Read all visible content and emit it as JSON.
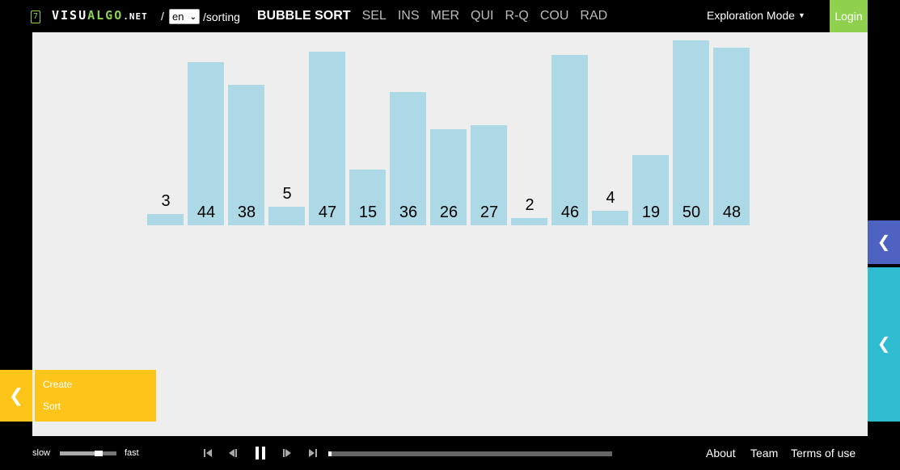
{
  "header": {
    "logo_badge": "7",
    "logo_part1": "VISU",
    "logo_part2": "ALGO",
    "logo_part3": ".NET",
    "slash": "/",
    "language": "en",
    "path": "/sorting",
    "algorithms": [
      {
        "label": "BUBBLE SORT",
        "active": true
      },
      {
        "label": "SEL",
        "active": false
      },
      {
        "label": "INS",
        "active": false
      },
      {
        "label": "MER",
        "active": false
      },
      {
        "label": "QUI",
        "active": false
      },
      {
        "label": "R-Q",
        "active": false
      },
      {
        "label": "COU",
        "active": false
      },
      {
        "label": "RAD",
        "active": false
      }
    ],
    "mode": "Exploration Mode",
    "login": "Login"
  },
  "array": {
    "values": [
      3,
      44,
      38,
      5,
      47,
      15,
      36,
      26,
      27,
      2,
      46,
      4,
      19,
      50,
      48
    ],
    "labels": [
      "3",
      "44",
      "38",
      "5",
      "47",
      "15",
      "36",
      "26",
      "27",
      "2",
      "46",
      "4",
      "19",
      "50",
      "48"
    ],
    "max_value": 50
  },
  "actions": {
    "create": "Create",
    "sort": "Sort"
  },
  "playback": {
    "slow": "slow",
    "fast": "fast",
    "speed_level": 0.69,
    "progress": 0.01
  },
  "footer": {
    "about": "About",
    "team": "Team",
    "terms": "Terms of use"
  },
  "colors": {
    "bar": "#add8e6",
    "canvas": "#eeeeee",
    "accent_green": "#8fd14f",
    "actions_yellow": "#fdc51a",
    "tab_blue": "#4e63c1",
    "tab_cyan": "#2fbbd0"
  }
}
